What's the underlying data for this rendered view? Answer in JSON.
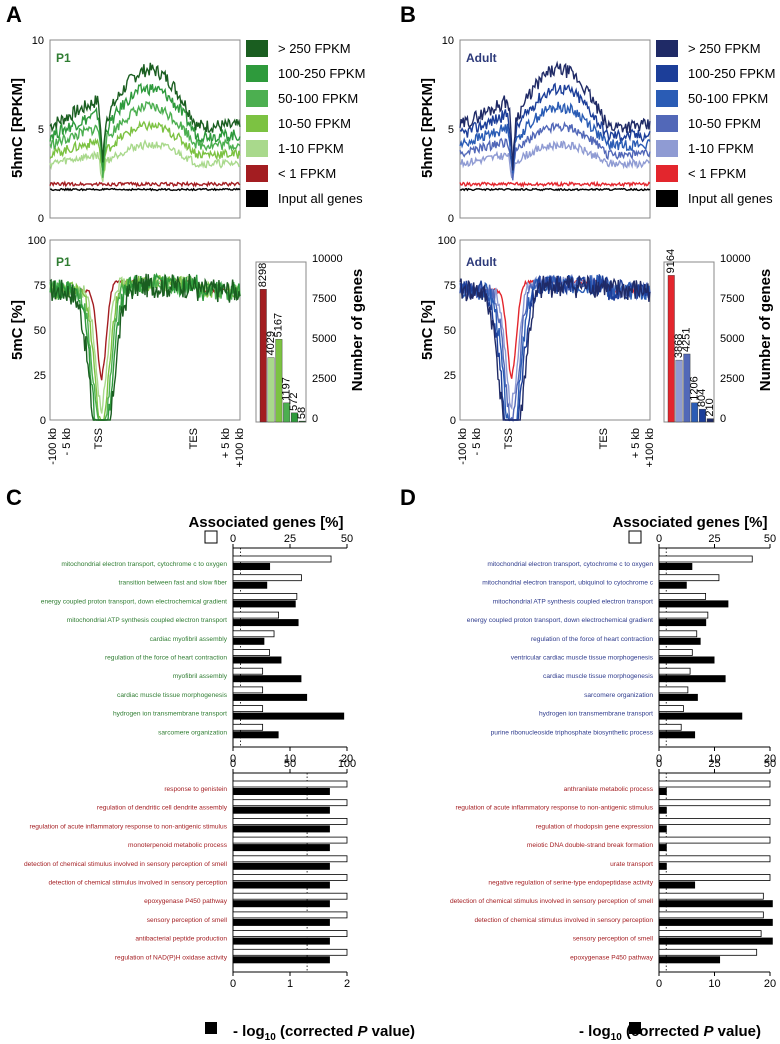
{
  "panels": {
    "A": {
      "label": "A",
      "sample": "P1",
      "sample_color": "#2f7d32",
      "hmc_ylabel": "5hmC [RPKM]",
      "mc_ylabel": "5mC [%]",
      "count_ylabel": "Number of genes",
      "hmc_yticks": [
        "10",
        "5",
        "0"
      ],
      "mc_yticks": [
        "100",
        "75",
        "50",
        "25",
        "0"
      ],
      "count_yticks": [
        "10000",
        "7500",
        "5000",
        "2500",
        "0"
      ],
      "xticks": [
        "-100 kb",
        "- 5 kb",
        "TSS",
        "TES",
        "+ 5 kb",
        "+100 kb"
      ],
      "legend": [
        {
          "label": "> 250 FPKM",
          "color": "#1a5e20"
        },
        {
          "label": "100-250 FPKM",
          "color": "#2e9a3c"
        },
        {
          "label": "50-100 FPKM",
          "color": "#4caf50"
        },
        {
          "label": "10-50 FPKM",
          "color": "#7cc242"
        },
        {
          "label": "1-10 FPKM",
          "color": "#a9d98c"
        },
        {
          "label": "< 1 FPKM",
          "color": "#a31d21"
        },
        {
          "label": "Input all genes",
          "color": "#000000"
        }
      ],
      "gene_counts": [
        {
          "label": "8298",
          "value": 8298,
          "color": "#a31d21"
        },
        {
          "label": "4029",
          "value": 4029,
          "color": "#a9d98c"
        },
        {
          "label": "5167",
          "value": 5167,
          "color": "#7cc242"
        },
        {
          "label": "1197",
          "value": 1197,
          "color": "#4caf50"
        },
        {
          "label": "572",
          "value": 572,
          "color": "#2e9a3c"
        },
        {
          "label": "58",
          "value": 58,
          "color": "#1a5e20"
        }
      ]
    },
    "B": {
      "label": "B",
      "sample": "Adult",
      "sample_color": "#2d3a7a",
      "hmc_ylabel": "5hmC [RPKM]",
      "mc_ylabel": "5mC [%]",
      "count_ylabel": "Number of genes",
      "hmc_yticks": [
        "10",
        "5",
        "0"
      ],
      "mc_yticks": [
        "100",
        "75",
        "50",
        "25",
        "0"
      ],
      "count_yticks": [
        "10000",
        "7500",
        "5000",
        "2500",
        "0"
      ],
      "xticks": [
        "-100 kb",
        "- 5 kb",
        "TSS",
        "TES",
        "+ 5 kb",
        "+100 kb"
      ],
      "legend": [
        {
          "label": "> 250 FPKM",
          "color": "#1f2a66"
        },
        {
          "label": "100-250 FPKM",
          "color": "#1c3e99"
        },
        {
          "label": "50-100 FPKM",
          "color": "#2a5cb5"
        },
        {
          "label": "10-50 FPKM",
          "color": "#5268b8"
        },
        {
          "label": "1-10 FPKM",
          "color": "#8f9bd3"
        },
        {
          "label": "< 1 FPKM",
          "color": "#e3262d"
        },
        {
          "label": "Input all genes",
          "color": "#000000"
        }
      ],
      "gene_counts": [
        {
          "label": "9164",
          "value": 9164,
          "color": "#e3262d"
        },
        {
          "label": "3868",
          "value": 3868,
          "color": "#8f9bd3"
        },
        {
          "label": "4251",
          "value": 4251,
          "color": "#5268b8"
        },
        {
          "label": "1206",
          "value": 1206,
          "color": "#2a5cb5"
        },
        {
          "label": "804",
          "value": 804,
          "color": "#1c3e99"
        },
        {
          "label": "210",
          "value": 210,
          "color": "#1f2a66"
        }
      ]
    },
    "C": {
      "label": "C",
      "top_axis_label": "Associated genes [%]",
      "bottom_axis_label_pre": "- log",
      "bottom_axis_label_sub": "10",
      "bottom_axis_label_post": " (corrected ",
      "bottom_axis_label_p": "P",
      "bottom_axis_label_end": " value)",
      "upper": {
        "term_color": "#2f7d32",
        "open_ticks": [
          "0",
          "25",
          "50"
        ],
        "open_max": 50,
        "filled_ticks": [
          "0",
          "10",
          "20"
        ],
        "filled_max": 20,
        "threshold": 1.3,
        "terms": [
          {
            "name": "mitochondrial electron transport, cytochrome c to oxygen",
            "percent": 43,
            "logp": 6.5
          },
          {
            "name": "transition between fast and slow fiber",
            "percent": 30,
            "logp": 6.0
          },
          {
            "name": "energy coupled proton transport, down electrochemical gradient",
            "percent": 28,
            "logp": 11.0
          },
          {
            "name": "mitochondrial ATP synthesis coupled electron transport",
            "percent": 20,
            "logp": 11.5
          },
          {
            "name": "cardiac myofibril assembly",
            "percent": 18,
            "logp": 5.5
          },
          {
            "name": "regulation of the force of heart contraction",
            "percent": 16,
            "logp": 8.5
          },
          {
            "name": "myofibril assembly",
            "percent": 13,
            "logp": 12.0
          },
          {
            "name": "cardiac muscle tissue morphogenesis",
            "percent": 13,
            "logp": 13.0
          },
          {
            "name": "hydrogen ion transmembrane transport",
            "percent": 13,
            "logp": 19.5
          },
          {
            "name": "sarcomere organization",
            "percent": 13,
            "logp": 8.0
          }
        ]
      },
      "lower": {
        "term_color": "#a31d21",
        "open_ticks": [
          "0",
          "50",
          "100"
        ],
        "open_max": 100,
        "filled_ticks": [
          "0",
          "1",
          "2"
        ],
        "filled_max": 2,
        "threshold": 1.3,
        "terms": [
          {
            "name": "response to genistein",
            "percent": 100,
            "logp": 1.7
          },
          {
            "name": "regulation of dendritic cell dendrite assembly",
            "percent": 100,
            "logp": 1.7
          },
          {
            "name": "regulation of acute inflammatory response to non-antigenic stimulus",
            "percent": 100,
            "logp": 1.7
          },
          {
            "name": "monoterpenoid metabolic process",
            "percent": 100,
            "logp": 1.7
          },
          {
            "name": "detection of chemical stimulus involved in sensory perception of smell",
            "percent": 100,
            "logp": 1.7
          },
          {
            "name": "detection of chemical stimulus involved in sensory perception",
            "percent": 100,
            "logp": 1.7
          },
          {
            "name": "epoxygenase P450 pathway",
            "percent": 100,
            "logp": 1.7
          },
          {
            "name": "sensory perception of smell",
            "percent": 100,
            "logp": 1.7
          },
          {
            "name": "antibacterial peptide production",
            "percent": 100,
            "logp": 1.7
          },
          {
            "name": "regulation of NAD(P)H oxidase activity",
            "percent": 100,
            "logp": 1.7
          }
        ]
      }
    },
    "D": {
      "label": "D",
      "top_axis_label": "Associated genes [%]",
      "bottom_axis_label_pre": "- log",
      "bottom_axis_label_sub": "10",
      "bottom_axis_label_post": " (corrected ",
      "bottom_axis_label_p": "P",
      "bottom_axis_label_end": " value)",
      "upper": {
        "term_color": "#2d3a8c",
        "open_ticks": [
          "0",
          "25",
          "50"
        ],
        "open_max": 50,
        "filled_ticks": [
          "0",
          "10",
          "20"
        ],
        "filled_max": 20,
        "threshold": 1.3,
        "terms": [
          {
            "name": "mitochondrial electron transport, cytochrome c to oxygen",
            "percent": 42,
            "logp": 6.0
          },
          {
            "name": "mitochondrial electron transport, ubiquinol to cytochrome c",
            "percent": 27,
            "logp": 5.0
          },
          {
            "name": "mitochondrial ATP synthesis coupled electron transport",
            "percent": 21,
            "logp": 12.5
          },
          {
            "name": "energy coupled proton transport, down electrochemical gradient",
            "percent": 22,
            "logp": 8.5
          },
          {
            "name": "regulation of the force of heart contraction",
            "percent": 17,
            "logp": 7.5
          },
          {
            "name": "ventricular cardiac muscle tissue morphogenesis",
            "percent": 15,
            "logp": 10.0
          },
          {
            "name": "cardiac muscle tissue morphogenesis",
            "percent": 14,
            "logp": 12.0
          },
          {
            "name": "sarcomere organization",
            "percent": 13,
            "logp": 7.0
          },
          {
            "name": "hydrogen ion transmembrane transport",
            "percent": 11,
            "logp": 15.0
          },
          {
            "name": "purine ribonucleoside triphosphate biosynthetic process",
            "percent": 10,
            "logp": 6.5
          }
        ]
      },
      "lower": {
        "term_color": "#a31d21",
        "open_ticks": [
          "0",
          "25",
          "50"
        ],
        "open_max": 50,
        "filled_ticks": [
          "0",
          "10",
          "20"
        ],
        "filled_max": 20,
        "threshold": 1.3,
        "terms": [
          {
            "name": "anthranilate metabolic process",
            "percent": 50,
            "logp": 1.4
          },
          {
            "name": "regulation of acute inflammatory response to non-antigenic stimulus",
            "percent": 50,
            "logp": 1.4
          },
          {
            "name": "regulation of rhodopsin gene expression",
            "percent": 50,
            "logp": 1.4
          },
          {
            "name": "meiotic DNA double-strand break formation",
            "percent": 50,
            "logp": 1.4
          },
          {
            "name": "urate transport",
            "percent": 50,
            "logp": 1.4
          },
          {
            "name": "negative regulation of serine-type endopeptidase activity",
            "percent": 50,
            "logp": 6.5
          },
          {
            "name": "detection of chemical stimulus involved in sensory perception of smell",
            "percent": 47,
            "logp": 20.5
          },
          {
            "name": "detection of chemical stimulus involved in sensory perception",
            "percent": 47,
            "logp": 20.5
          },
          {
            "name": "sensory perception of smell",
            "percent": 46,
            "logp": 20.5
          },
          {
            "name": "epoxygenase P450 pathway",
            "percent": 44,
            "logp": 11.0
          }
        ]
      }
    }
  }
}
